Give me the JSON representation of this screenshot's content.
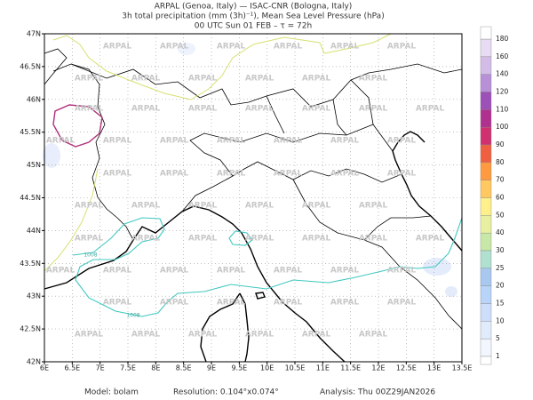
{
  "header": {
    "lines": [
      "ARPAL (Genoa, Italy)  —  ISAC-CNR (Bologna, Italy)",
      "3h total precipitation (mm (3h)⁻¹), Mean Sea Level Pressure (hPa)",
      "00 UTC Sun 01 FEB  –  τ = 72h"
    ]
  },
  "map": {
    "x_labels": [
      "6E",
      "6.5E",
      "7E",
      "7.5E",
      "8E",
      "8.5E",
      "9E",
      "9.5E",
      "10E",
      "10.5E",
      "11E",
      "11.5E",
      "12E",
      "12.5E",
      "13E",
      "13.5E"
    ],
    "y_labels": [
      "47N",
      "46.5N",
      "46N",
      "45.5N",
      "45N",
      "44.5N",
      "44N",
      "43.5N",
      "43N",
      "42.5N",
      "42N"
    ],
    "watermark": "ARPAL",
    "contour_labels": [
      "1008",
      "1008"
    ]
  },
  "colorbar": {
    "levels": [
      180,
      160,
      140,
      120,
      110,
      100,
      90,
      80,
      70,
      60,
      50,
      40,
      30,
      25,
      20,
      15,
      10,
      5,
      1
    ],
    "colors": [
      "#e8dcf4",
      "#d4bce8",
      "#b890d8",
      "#9c50b8",
      "#b03090",
      "#d03070",
      "#f06040",
      "#ff9a40",
      "#ffc860",
      "#fff08c",
      "#e8f0a0",
      "#c8e8a8",
      "#b0e0d0",
      "#a8c8f0",
      "#b8d4f8",
      "#ccdefa",
      "#e0ebfc",
      "#f2f6fe"
    ]
  },
  "footer": {
    "model": "Model: bolam",
    "resolution": "Resolution: 0.104°x0.074°",
    "analysis": "Analysis: Thu 00Z29JAN2026"
  }
}
